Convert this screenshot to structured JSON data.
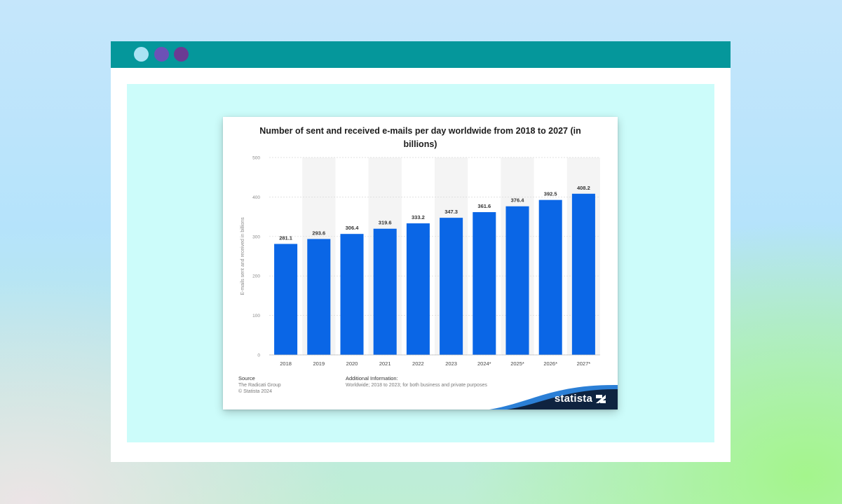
{
  "window": {
    "dots": [
      {
        "name": "window-dot-light",
        "color": "#a9e3f4"
      },
      {
        "name": "window-dot-purple",
        "color": "#6d51b6"
      },
      {
        "name": "window-dot-violet",
        "color": "#6b3b93"
      }
    ],
    "titlebar_color": "#05979b"
  },
  "chart_data": {
    "type": "bar",
    "title": "Number of sent and received e-mails per day worldwide from 2018 to 2027 (in billions)",
    "ylabel": "E-mails sent and received in billions",
    "xlabel": "",
    "categories": [
      "2018",
      "2019",
      "2020",
      "2021",
      "2022",
      "2023",
      "2024*",
      "2025*",
      "2026*",
      "2027*"
    ],
    "values": [
      281.1,
      293.6,
      306.4,
      319.6,
      333.2,
      347.3,
      361.6,
      376.4,
      392.5,
      408.2
    ],
    "value_labels": [
      "281.1",
      "293.6",
      "306.4",
      "319.6",
      "333.2",
      "347.3",
      "361.6",
      "376.4",
      "392.5",
      "408.2"
    ],
    "ylim": [
      0,
      500
    ],
    "yticks": [
      0,
      100,
      200,
      300,
      400,
      500
    ],
    "grid": true,
    "legend": "none",
    "bar_color": "#0a66e6"
  },
  "footer": {
    "source_heading": "Source",
    "source_lines": [
      "The Radicati Group",
      "© Statista 2024"
    ],
    "info_heading": "Additional Information:",
    "info_text": "Worldwide; 2018 to 2023; for both business and private purposes",
    "brand": "statista"
  }
}
